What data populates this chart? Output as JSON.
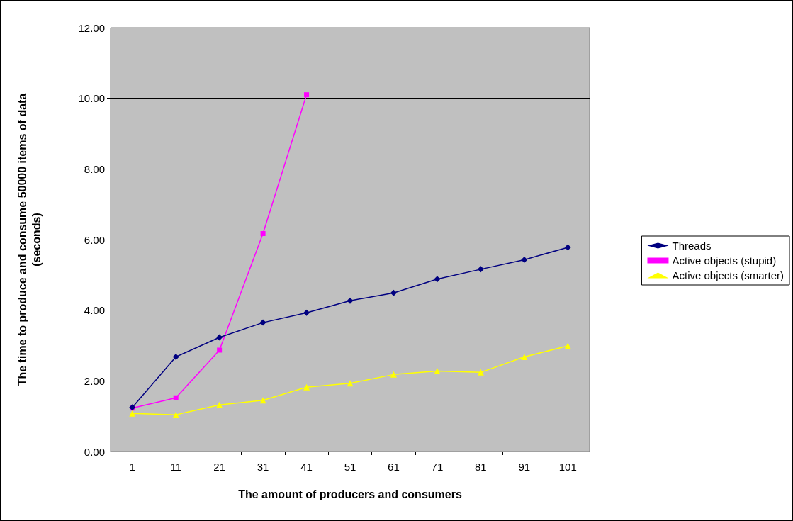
{
  "chart_data": {
    "type": "line",
    "xlabel": "The amount of producers and consumers",
    "ylabel": "The time to produce and consume 50000 items of data\n(seconds)",
    "categories": [
      "1",
      "11",
      "21",
      "31",
      "41",
      "51",
      "61",
      "71",
      "81",
      "91",
      "101"
    ],
    "series": [
      {
        "name": "Threads",
        "color": "#000080",
        "marker": "diamond",
        "values": [
          1.25,
          2.68,
          3.23,
          3.65,
          3.93,
          4.27,
          4.49,
          4.88,
          5.16,
          5.43,
          5.78
        ]
      },
      {
        "name": "Active objects (stupid)",
        "color": "#ff00ff",
        "marker": "square",
        "values": [
          1.23,
          1.52,
          2.87,
          6.17,
          10.1,
          null,
          null,
          null,
          null,
          null,
          null
        ]
      },
      {
        "name": "Active objects (smarter)",
        "color": "#ffff00",
        "marker": "triangle",
        "values": [
          1.08,
          1.04,
          1.32,
          1.45,
          1.82,
          1.93,
          2.18,
          2.28,
          2.24,
          2.68,
          2.99
        ]
      }
    ],
    "ylim": [
      0,
      12
    ],
    "yticks": [
      {
        "value": 0,
        "label": "0.00"
      },
      {
        "value": 2,
        "label": "2.00"
      },
      {
        "value": 4,
        "label": "4.00"
      },
      {
        "value": 6,
        "label": "6.00"
      },
      {
        "value": 8,
        "label": "8.00"
      },
      {
        "value": 10,
        "label": "10.00"
      },
      {
        "value": 12,
        "label": "12.00"
      }
    ],
    "grid": "y",
    "legend": "right"
  }
}
